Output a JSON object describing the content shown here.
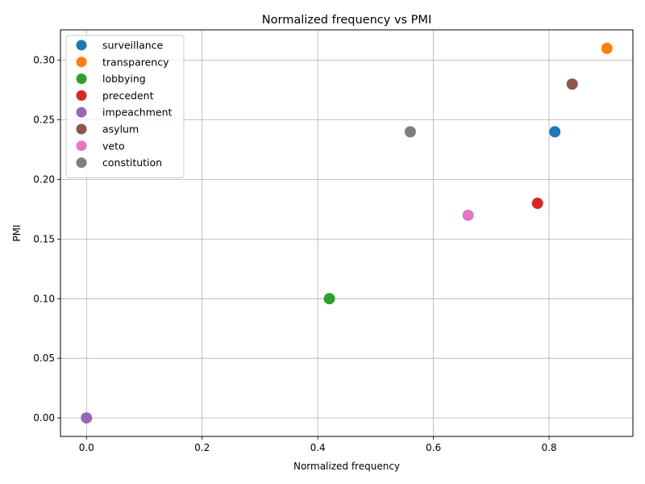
{
  "chart_data": {
    "type": "scatter",
    "title": "Normalized frequency vs PMI",
    "xlabel": "Normalized frequency",
    "ylabel": "PMI",
    "xlim": [
      -0.045,
      0.945
    ],
    "ylim": [
      -0.0155,
      0.3255
    ],
    "xticks": [
      0.0,
      0.2,
      0.4,
      0.6,
      0.8
    ],
    "xtick_labels": [
      "0.0",
      "0.2",
      "0.4",
      "0.6",
      "0.8"
    ],
    "yticks": [
      0.0,
      0.05,
      0.1,
      0.15,
      0.2,
      0.25,
      0.3
    ],
    "ytick_labels": [
      "0.00",
      "0.05",
      "0.10",
      "0.15",
      "0.20",
      "0.25",
      "0.30"
    ],
    "grid": true,
    "legend_position": "top-left",
    "series": [
      {
        "name": "surveillance",
        "color": "#1f77b4",
        "x": 0.81,
        "y": 0.24
      },
      {
        "name": "transparency",
        "color": "#ff7f0e",
        "x": 0.9,
        "y": 0.31
      },
      {
        "name": "lobbying",
        "color": "#2ca02c",
        "x": 0.42,
        "y": 0.1
      },
      {
        "name": "precedent",
        "color": "#d62728",
        "x": 0.78,
        "y": 0.18
      },
      {
        "name": "impeachment",
        "color": "#9467bd",
        "x": 0.0,
        "y": 0.0
      },
      {
        "name": "asylum",
        "color": "#8c564b",
        "x": 0.84,
        "y": 0.28
      },
      {
        "name": "veto",
        "color": "#e377c2",
        "x": 0.66,
        "y": 0.17
      },
      {
        "name": "constitution",
        "color": "#7f7f7f",
        "x": 0.56,
        "y": 0.24
      }
    ]
  }
}
